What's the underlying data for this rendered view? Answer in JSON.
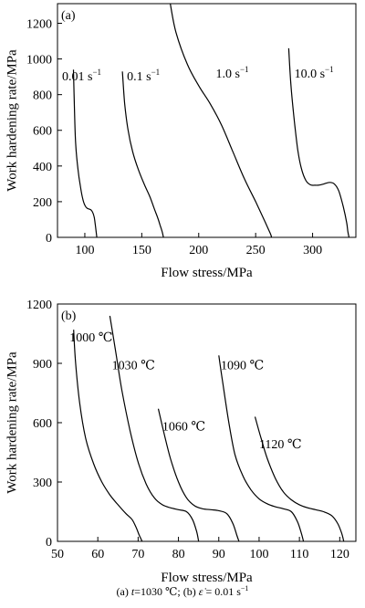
{
  "caption": {
    "part_a": "(a)",
    "t_symbol": "t",
    "t_value": "=1030 ℃;",
    "part_b": "(b)",
    "rate_symbol": "ε̇",
    "rate_value": "= 0.01 s",
    "rate_exp": "−1"
  },
  "chart_data": [
    {
      "type": "line",
      "panel_label": "(a)",
      "xlabel": "Flow stress/MPa",
      "ylabel": "Work hardening rate/MPa",
      "xlim": [
        76,
        338
      ],
      "ylim": [
        0,
        1310
      ],
      "xticks": [
        100,
        150,
        200,
        250,
        300
      ],
      "yticks": [
        0,
        200,
        400,
        600,
        800,
        1000,
        1200
      ],
      "grid": false,
      "series": [
        {
          "name": "0.01 s",
          "exp": "−1",
          "label_pos": [
            80,
            880
          ],
          "points": [
            [
              90,
              940
            ],
            [
              91,
              700
            ],
            [
              92,
              520
            ],
            [
              94,
              380
            ],
            [
              96,
              290
            ],
            [
              98,
              220
            ],
            [
              100,
              180
            ],
            [
              102,
              163
            ],
            [
              104,
              158
            ],
            [
              106,
              150
            ],
            [
              108,
              120
            ],
            [
              109,
              80
            ],
            [
              110,
              30
            ],
            [
              110.5,
              0
            ]
          ]
        },
        {
          "name": "0.1 s",
          "exp": "−1",
          "label_pos": [
            137,
            880
          ],
          "points": [
            [
              133,
              930
            ],
            [
              135,
              750
            ],
            [
              138,
              600
            ],
            [
              142,
              480
            ],
            [
              147,
              380
            ],
            [
              152,
              300
            ],
            [
              157,
              230
            ],
            [
              161,
              160
            ],
            [
              164,
              110
            ],
            [
              166,
              70
            ],
            [
              168,
              30
            ],
            [
              169,
              0
            ]
          ]
        },
        {
          "name": "1.0 s",
          "exp": "−1",
          "label_pos": [
            215,
            895
          ],
          "points": [
            [
              175,
              1310
            ],
            [
              180,
              1150
            ],
            [
              190,
              970
            ],
            [
              200,
              850
            ],
            [
              210,
              750
            ],
            [
              220,
              630
            ],
            [
              230,
              480
            ],
            [
              240,
              330
            ],
            [
              250,
              200
            ],
            [
              258,
              90
            ],
            [
              263,
              20
            ],
            [
              264,
              0
            ]
          ]
        },
        {
          "name": "10.0 s",
          "exp": "−1",
          "label_pos": [
            284,
            895
          ],
          "points": [
            [
              279,
              1060
            ],
            [
              281,
              850
            ],
            [
              284,
              650
            ],
            [
              287,
              490
            ],
            [
              290,
              390
            ],
            [
              294,
              320
            ],
            [
              298,
              295
            ],
            [
              302,
              292
            ],
            [
              306,
              293
            ],
            [
              310,
              300
            ],
            [
              315,
              308
            ],
            [
              319,
              300
            ],
            [
              323,
              260
            ],
            [
              327,
              170
            ],
            [
              330,
              80
            ],
            [
              331,
              30
            ],
            [
              332,
              0
            ]
          ]
        }
      ]
    },
    {
      "type": "line",
      "panel_label": "(b)",
      "xlabel": "Flow stress/MPa",
      "ylabel": "Work hardening rate/MPa",
      "xlim": [
        50,
        124
      ],
      "ylim": [
        0,
        1200
      ],
      "xticks": [
        50,
        60,
        70,
        80,
        90,
        100,
        110,
        120
      ],
      "yticks": [
        0,
        300,
        600,
        900,
        1200
      ],
      "grid": false,
      "series": [
        {
          "name": "1000 ℃",
          "label_pos": [
            53,
            1010
          ],
          "points": [
            [
              54,
              1070
            ],
            [
              54.5,
              900
            ],
            [
              55.5,
              700
            ],
            [
              57,
              520
            ],
            [
              59,
              390
            ],
            [
              61,
              300
            ],
            [
              63,
              235
            ],
            [
              65,
              185
            ],
            [
              67,
              140
            ],
            [
              68.5,
              110
            ],
            [
              69.5,
              70
            ],
            [
              70.3,
              30
            ],
            [
              71,
              0
            ]
          ]
        },
        {
          "name": "1030 ℃",
          "label_pos": [
            63.5,
            870
          ],
          "points": [
            [
              63,
              1140
            ],
            [
              64.5,
              950
            ],
            [
              66,
              760
            ],
            [
              68,
              560
            ],
            [
              70,
              400
            ],
            [
              72,
              290
            ],
            [
              74,
              220
            ],
            [
              76,
              185
            ],
            [
              78,
              170
            ],
            [
              80,
              160
            ],
            [
              82,
              150
            ],
            [
              83.5,
              110
            ],
            [
              84.5,
              50
            ],
            [
              85,
              0
            ]
          ]
        },
        {
          "name": "1060 ℃",
          "label_pos": [
            76,
            560
          ],
          "points": [
            [
              75,
              670
            ],
            [
              76.5,
              540
            ],
            [
              78,
              420
            ],
            [
              80,
              300
            ],
            [
              82,
              220
            ],
            [
              84,
              180
            ],
            [
              86,
              165
            ],
            [
              88,
              160
            ],
            [
              90,
              155
            ],
            [
              92,
              140
            ],
            [
              93.5,
              90
            ],
            [
              94.5,
              30
            ],
            [
              95,
              0
            ]
          ]
        },
        {
          "name": "1090 ℃",
          "label_pos": [
            90.5,
            870
          ],
          "points": [
            [
              90,
              940
            ],
            [
              91,
              800
            ],
            [
              92.5,
              600
            ],
            [
              94,
              440
            ],
            [
              96,
              330
            ],
            [
              98,
              260
            ],
            [
              100,
              215
            ],
            [
              102,
              190
            ],
            [
              104,
              175
            ],
            [
              106,
              165
            ],
            [
              108,
              150
            ],
            [
              109.5,
              100
            ],
            [
              110.5,
              40
            ],
            [
              111,
              0
            ]
          ]
        },
        {
          "name": "1120 ℃",
          "label_pos": [
            100,
            470
          ],
          "points": [
            [
              99,
              630
            ],
            [
              100.5,
              520
            ],
            [
              102,
              420
            ],
            [
              104,
              320
            ],
            [
              106,
              250
            ],
            [
              108,
              210
            ],
            [
              110,
              185
            ],
            [
              112,
              170
            ],
            [
              114,
              160
            ],
            [
              116,
              150
            ],
            [
              118,
              130
            ],
            [
              119.5,
              90
            ],
            [
              120.5,
              40
            ],
            [
              121,
              0
            ]
          ]
        }
      ]
    }
  ]
}
